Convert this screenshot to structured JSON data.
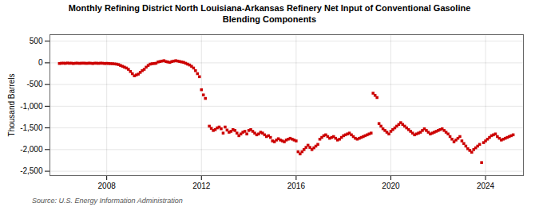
{
  "chart_data": {
    "type": "scatter",
    "title": "Monthly Refining District North Louisiana-Arkansas Refinery Net Input of Conventional Gasoline",
    "subtitle": "Blending Components",
    "ylabel": "Thousand Barrels",
    "source": "Source: U.S. Energy Information Administration",
    "color": "#cc0000",
    "marker": "square",
    "grid": true,
    "xlim": [
      2005.6,
      2025.6
    ],
    "xticks": [
      2008,
      2012,
      2016,
      2020,
      2024
    ],
    "ylim": [
      -2600,
      650
    ],
    "yticks": [
      {
        "value": -2500,
        "label": "-2,500"
      },
      {
        "value": -2000,
        "label": "-2,000"
      },
      {
        "value": -1500,
        "label": "-1,500"
      },
      {
        "value": -1000,
        "label": "-1,000"
      },
      -500,
      0,
      500
    ],
    "x": [
      2006.0,
      2006.083,
      2006.167,
      2006.25,
      2006.333,
      2006.417,
      2006.5,
      2006.583,
      2006.667,
      2006.75,
      2006.833,
      2006.917,
      2007.0,
      2007.083,
      2007.167,
      2007.25,
      2007.333,
      2007.417,
      2007.5,
      2007.583,
      2007.667,
      2007.75,
      2007.833,
      2007.917,
      2008.0,
      2008.083,
      2008.167,
      2008.25,
      2008.333,
      2008.417,
      2008.5,
      2008.583,
      2008.667,
      2008.75,
      2008.833,
      2008.917,
      2009.0,
      2009.083,
      2009.167,
      2009.25,
      2009.333,
      2009.417,
      2009.5,
      2009.583,
      2009.667,
      2009.75,
      2009.833,
      2009.917,
      2010.0,
      2010.083,
      2010.167,
      2010.25,
      2010.333,
      2010.417,
      2010.5,
      2010.583,
      2010.667,
      2010.75,
      2010.833,
      2010.917,
      2011.0,
      2011.083,
      2011.167,
      2011.25,
      2011.333,
      2011.417,
      2011.5,
      2011.583,
      2011.667,
      2011.75,
      2011.833,
      2011.917,
      2012.0,
      2012.083,
      2012.167,
      2012.333,
      2012.417,
      2012.5,
      2012.583,
      2012.667,
      2012.75,
      2012.833,
      2012.917,
      2013.0,
      2013.083,
      2013.167,
      2013.25,
      2013.333,
      2013.417,
      2013.5,
      2013.583,
      2013.667,
      2013.75,
      2013.833,
      2013.917,
      2014.0,
      2014.083,
      2014.167,
      2014.25,
      2014.333,
      2014.417,
      2014.5,
      2014.583,
      2014.667,
      2014.75,
      2014.833,
      2014.917,
      2015.0,
      2015.083,
      2015.167,
      2015.25,
      2015.333,
      2015.417,
      2015.5,
      2015.583,
      2015.667,
      2015.75,
      2015.833,
      2015.917,
      2016.0,
      2016.083,
      2016.167,
      2016.25,
      2016.333,
      2016.417,
      2016.5,
      2016.583,
      2016.667,
      2016.75,
      2016.833,
      2016.917,
      2017.0,
      2017.083,
      2017.167,
      2017.25,
      2017.333,
      2017.417,
      2017.5,
      2017.583,
      2017.667,
      2017.75,
      2017.833,
      2017.917,
      2018.0,
      2018.083,
      2018.167,
      2018.25,
      2018.333,
      2018.417,
      2018.5,
      2018.583,
      2018.667,
      2018.75,
      2018.833,
      2018.917,
      2019.0,
      2019.083,
      2019.167,
      2019.25,
      2019.333,
      2019.417,
      2019.5,
      2019.583,
      2019.667,
      2019.75,
      2019.833,
      2019.917,
      2020.0,
      2020.083,
      2020.167,
      2020.25,
      2020.333,
      2020.417,
      2020.5,
      2020.583,
      2020.667,
      2020.75,
      2020.833,
      2020.917,
      2021.0,
      2021.083,
      2021.167,
      2021.25,
      2021.333,
      2021.417,
      2021.5,
      2021.583,
      2021.667,
      2021.75,
      2021.833,
      2021.917,
      2022.0,
      2022.083,
      2022.167,
      2022.25,
      2022.333,
      2022.417,
      2022.5,
      2022.583,
      2022.667,
      2022.75,
      2022.833,
      2022.917,
      2023.0,
      2023.083,
      2023.167,
      2023.25,
      2023.333,
      2023.417,
      2023.5,
      2023.583,
      2023.667,
      2023.75,
      2023.833,
      2023.917,
      2024.0,
      2024.083,
      2024.167,
      2024.25,
      2024.333,
      2024.417,
      2024.5,
      2024.583,
      2024.667,
      2024.75,
      2024.833,
      2024.917,
      2025.0,
      2025.083,
      2025.167
    ],
    "values": [
      -15,
      -10,
      -8,
      -12,
      -5,
      -10,
      -8,
      -15,
      -10,
      -8,
      -12,
      -10,
      -8,
      -10,
      -12,
      -8,
      -10,
      -15,
      -8,
      -10,
      -12,
      -8,
      -10,
      -15,
      -12,
      -15,
      -18,
      -20,
      -25,
      -30,
      -40,
      -60,
      -80,
      -100,
      -120,
      -150,
      -200,
      -250,
      -300,
      -280,
      -260,
      -220,
      -180,
      -150,
      -100,
      -60,
      -30,
      -20,
      -15,
      -10,
      20,
      30,
      40,
      50,
      30,
      20,
      10,
      30,
      40,
      50,
      40,
      30,
      20,
      10,
      -10,
      -30,
      -50,
      -80,
      -120,
      -180,
      -250,
      -320,
      -620,
      -740,
      -820,
      -1460,
      -1510,
      -1560,
      -1540,
      -1500,
      -1480,
      -1520,
      -1620,
      -1480,
      -1550,
      -1600,
      -1580,
      -1540,
      -1560,
      -1620,
      -1680,
      -1640,
      -1600,
      -1580,
      -1640,
      -1560,
      -1540,
      -1580,
      -1620,
      -1660,
      -1640,
      -1600,
      -1620,
      -1660,
      -1700,
      -1680,
      -1720,
      -1800,
      -1820,
      -1780,
      -1750,
      -1780,
      -1800,
      -1820,
      -1780,
      -1760,
      -1740,
      -1760,
      -1780,
      -1800,
      -2050,
      -2100,
      -2050,
      -2000,
      -1950,
      -1900,
      -1950,
      -2000,
      -1960,
      -1920,
      -1880,
      -1760,
      -1720,
      -1680,
      -1660,
      -1700,
      -1740,
      -1720,
      -1700,
      -1740,
      -1780,
      -1760,
      -1720,
      -1680,
      -1660,
      -1640,
      -1620,
      -1660,
      -1700,
      -1740,
      -1760,
      -1740,
      -1720,
      -1700,
      -1680,
      -1660,
      -1640,
      -1620,
      -700,
      -750,
      -800,
      -1400,
      -1460,
      -1520,
      -1560,
      -1600,
      -1640,
      -1580,
      -1540,
      -1500,
      -1460,
      -1420,
      -1380,
      -1420,
      -1460,
      -1500,
      -1540,
      -1580,
      -1620,
      -1660,
      -1640,
      -1620,
      -1600,
      -1560,
      -1520,
      -1560,
      -1600,
      -1640,
      -1620,
      -1600,
      -1580,
      -1560,
      -1540,
      -1520,
      -1560,
      -1600,
      -1640,
      -1700,
      -1760,
      -1820,
      -1780,
      -1740,
      -1700,
      -1800,
      -1860,
      -1920,
      -1980,
      -2020,
      -2060,
      -2000,
      -1960,
      -1920,
      -1880,
      -2300,
      -1840,
      -1800,
      -1760,
      -1720,
      -1680,
      -1660,
      -1640,
      -1700,
      -1740,
      -1780,
      -1760,
      -1740,
      -1720,
      -1700,
      -1680,
      -1660
    ]
  }
}
